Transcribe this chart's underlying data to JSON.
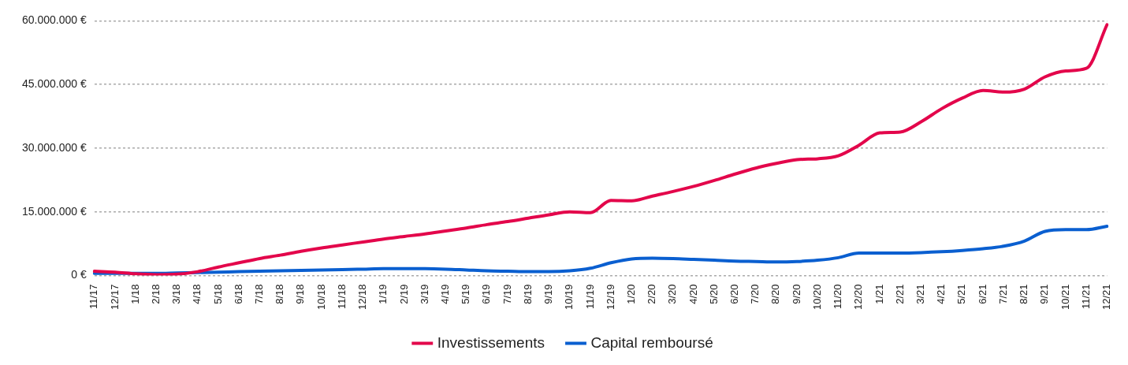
{
  "chart_data": {
    "type": "line",
    "categories": [
      "11/17",
      "12/17",
      "1/18",
      "2/18",
      "3/18",
      "4/18",
      "5/18",
      "6/18",
      "7/18",
      "8/18",
      "9/18",
      "10/18",
      "11/18",
      "12/18",
      "1/19",
      "2/19",
      "3/19",
      "4/19",
      "5/19",
      "6/19",
      "7/19",
      "8/19",
      "9/19",
      "10/19",
      "11/19",
      "12/19",
      "1/20",
      "2/20",
      "3/20",
      "4/20",
      "5/20",
      "6/20",
      "7/20",
      "8/20",
      "9/20",
      "10/20",
      "11/20",
      "12/20",
      "1/21",
      "2/21",
      "3/21",
      "4/21",
      "5/21",
      "6/21",
      "7/21",
      "8/21",
      "9/21",
      "10/21",
      "11/21",
      "12/21"
    ],
    "series": [
      {
        "name": "Investissements",
        "color": "#e3064b",
        "values": [
          1000000,
          800000,
          400000,
          200000,
          300000,
          900000,
          2000000,
          3000000,
          4000000,
          4800000,
          5700000,
          6500000,
          7200000,
          7900000,
          8600000,
          9200000,
          9800000,
          10500000,
          11200000,
          12000000,
          12700000,
          13500000,
          14300000,
          15000000,
          14800000,
          17700000,
          17600000,
          18700000,
          19800000,
          21000000,
          22400000,
          23900000,
          25300000,
          26400000,
          27300000,
          27500000,
          28200000,
          30700000,
          33600000,
          33800000,
          36200000,
          39300000,
          41800000,
          43600000,
          43200000,
          43900000,
          46800000,
          48200000,
          48800000,
          59100000
        ]
      },
      {
        "name": "Capital remboursé",
        "color": "#0a5fd0",
        "values": [
          500000,
          500000,
          500000,
          500000,
          600000,
          700000,
          800000,
          900000,
          1000000,
          1100000,
          1200000,
          1300000,
          1400000,
          1500000,
          1600000,
          1600000,
          1600000,
          1500000,
          1300000,
          1100000,
          1000000,
          900000,
          900000,
          1100000,
          1700000,
          3000000,
          3900000,
          4100000,
          4000000,
          3800000,
          3600000,
          3400000,
          3300000,
          3200000,
          3300000,
          3600000,
          4200000,
          5300000,
          5300000,
          5300000,
          5400000,
          5600000,
          5900000,
          6300000,
          6900000,
          8100000,
          10400000,
          10800000,
          10800000,
          11600000
        ]
      }
    ],
    "ylim": [
      0,
      60000000
    ],
    "yticks": [
      {
        "value": 0,
        "label": "0 €"
      },
      {
        "value": 15000000,
        "label": "15.000.000 €"
      },
      {
        "value": 30000000,
        "label": "30.000.000 €"
      },
      {
        "value": 45000000,
        "label": "45.000.000 €"
      },
      {
        "value": 60000000,
        "label": "60.000.000 €"
      }
    ],
    "grid": "y",
    "legend": "bottom",
    "line_style": "solid",
    "marker": "none"
  }
}
